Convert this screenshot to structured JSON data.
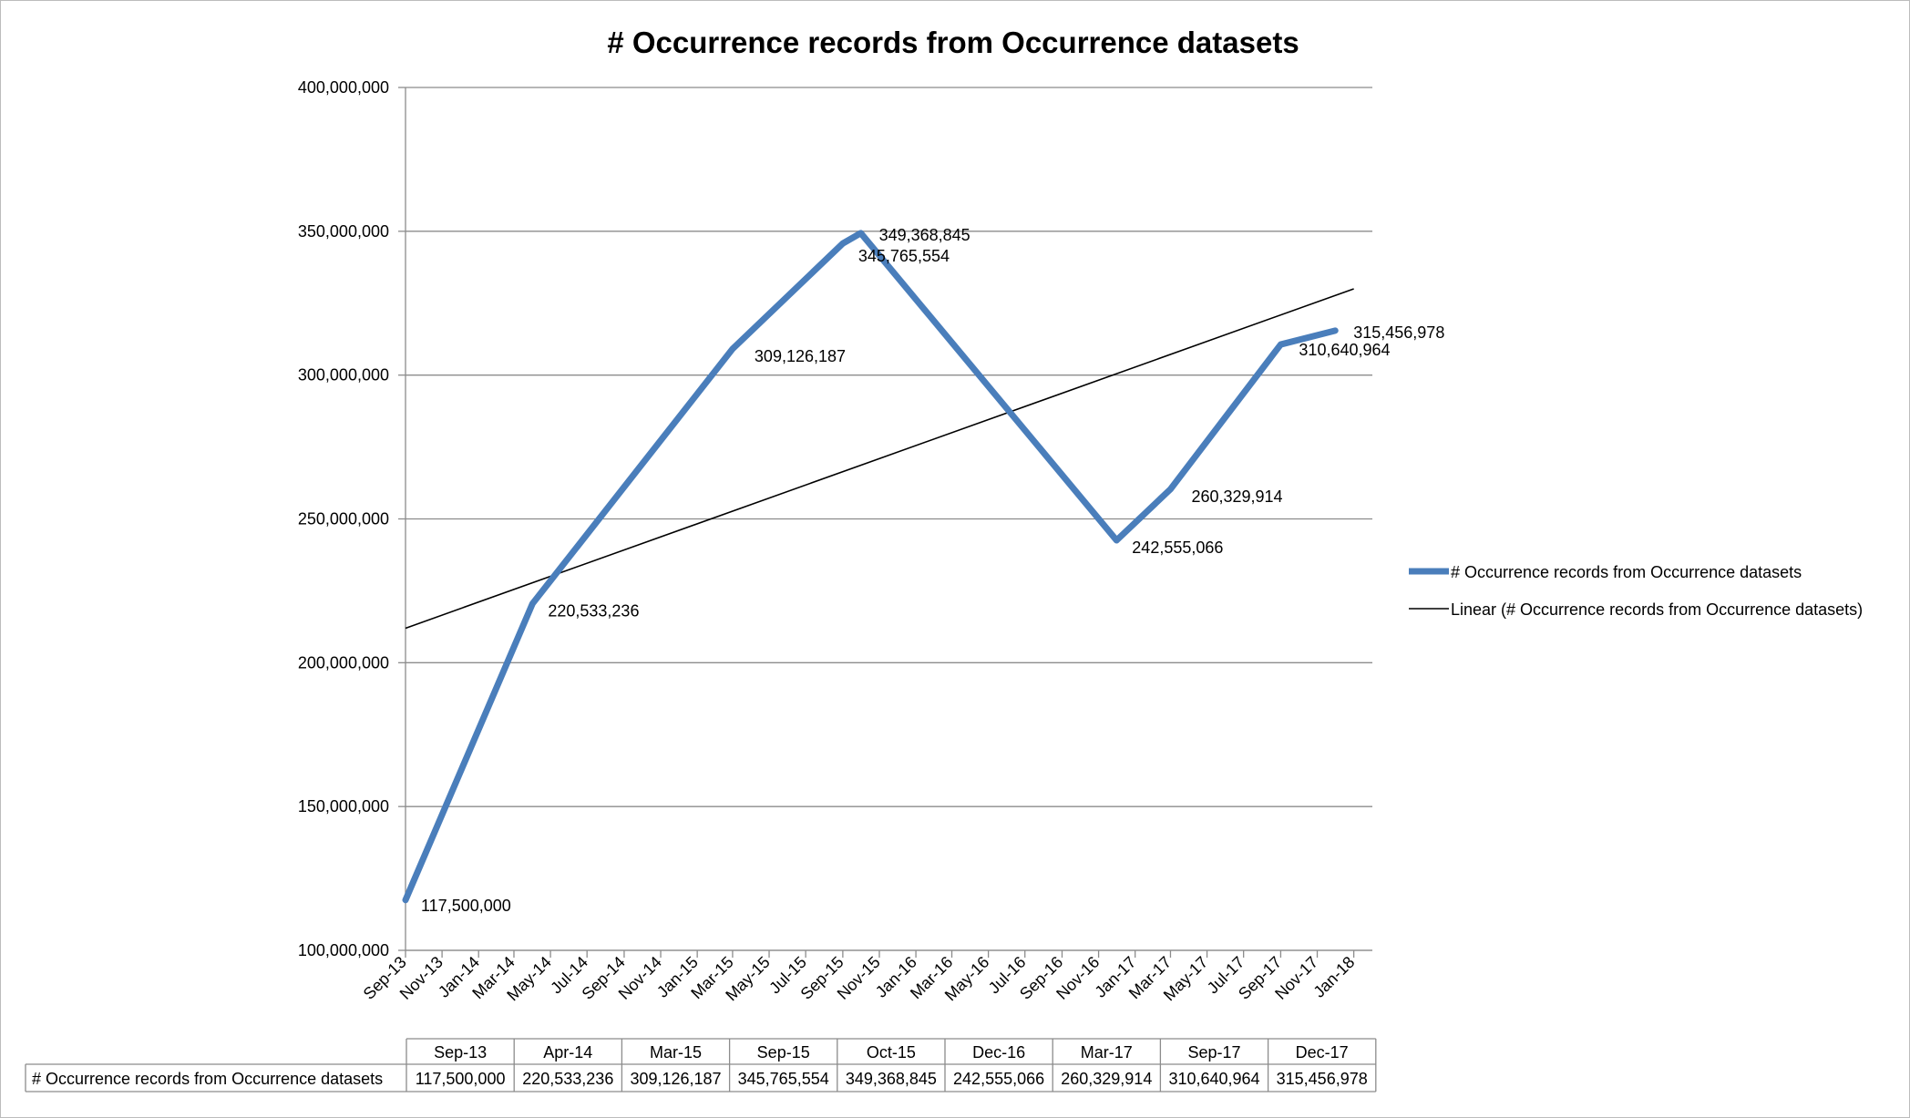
{
  "chart_data": {
    "type": "line",
    "title": "# Occurrence records from Occurrence datasets",
    "xlabel": "",
    "ylabel": "",
    "ylim": [
      100000000,
      400000000
    ],
    "y_ticks": [
      100000000,
      150000000,
      200000000,
      250000000,
      300000000,
      350000000,
      400000000
    ],
    "y_tick_labels": [
      "100,000,000",
      "150,000,000",
      "200,000,000",
      "250,000,000",
      "300,000,000",
      "350,000,000",
      "400,000,000"
    ],
    "x_axis": "date",
    "x_range": [
      "2013-09-01",
      "2018-02-01"
    ],
    "x_tick_labels": [
      "Sep-13",
      "Nov-13",
      "Jan-14",
      "Mar-14",
      "May-14",
      "Jul-14",
      "Sep-14",
      "Nov-14",
      "Jan-15",
      "Mar-15",
      "May-15",
      "Jul-15",
      "Sep-15",
      "Nov-15",
      "Jan-16",
      "Mar-16",
      "May-16",
      "Jul-16",
      "Sep-16",
      "Nov-16",
      "Jan-17",
      "Mar-17",
      "May-17",
      "Jul-17",
      "Sep-17",
      "Nov-17",
      "Jan-18"
    ],
    "grid": "horizontal",
    "legend_position": "right",
    "series": [
      {
        "name": "# Occurrence records from Occurrence datasets",
        "color": "#4a7ebb",
        "x": [
          "2013-09-01",
          "2014-04-01",
          "2015-03-01",
          "2015-09-01",
          "2015-10-01",
          "2016-12-01",
          "2017-03-01",
          "2017-09-01",
          "2017-12-01"
        ],
        "values": [
          117500000,
          220533236,
          309126187,
          345765554,
          349368845,
          242555066,
          260329914,
          310640964,
          315456978
        ],
        "data_labels": [
          "117,500,000",
          "220,533,236",
          "309,126,187",
          "345,765,554",
          "349,368,845",
          "242,555,066",
          "260,329,914",
          "310,640,964",
          "315,456,978"
        ]
      },
      {
        "name": "Linear (# Occurrence records from Occurrence datasets)",
        "color": "#000000",
        "trendline": "linear",
        "x": [
          "2013-09-01",
          "2018-01-01"
        ],
        "values": [
          212000000,
          330000000
        ]
      }
    ],
    "table": {
      "headers": [
        "Sep-13",
        "Apr-14",
        "Mar-15",
        "Sep-15",
        "Oct-15",
        "Dec-16",
        "Mar-17",
        "Sep-17",
        "Dec-17"
      ],
      "row_label": "# Occurrence records from Occurrence datasets",
      "cells": [
        "117,500,000",
        "220,533,236",
        "309,126,187",
        "345,765,554",
        "349,368,845",
        "242,555,066",
        "260,329,914",
        "310,640,964",
        "315,456,978"
      ]
    }
  }
}
